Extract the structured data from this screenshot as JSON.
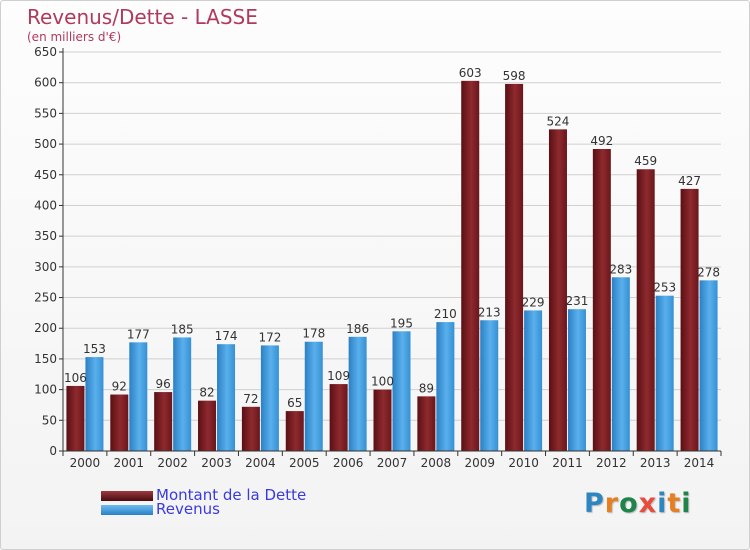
{
  "title": "Revenus/Dette - LASSE",
  "subtitle": "(en milliers d'€)",
  "legend": [
    "Montant de la Dette",
    "Revenus"
  ],
  "logo": {
    "letters": [
      "P",
      "r",
      "o",
      "x",
      "i",
      "t",
      "i"
    ],
    "colors": [
      "#2e86c1",
      "#e67e22",
      "#1e8449",
      "#e74c3c",
      "#2e86c1",
      "#e67e22",
      "#1e8449"
    ]
  },
  "colors": {
    "dette": "#7a1e22",
    "revenus": "#3a97d8",
    "axis": "#333333",
    "grid": "#d0d0d0"
  },
  "chart_data": {
    "type": "bar",
    "categories": [
      "2000",
      "2001",
      "2002",
      "2003",
      "2004",
      "2005",
      "2006",
      "2007",
      "2008",
      "2009",
      "2010",
      "2011",
      "2012",
      "2013",
      "2014"
    ],
    "series": [
      {
        "name": "Montant de la Dette",
        "values": [
          106,
          92,
          96,
          82,
          72,
          65,
          109,
          100,
          89,
          603,
          598,
          524,
          492,
          459,
          427
        ]
      },
      {
        "name": "Revenus",
        "values": [
          153,
          177,
          185,
          174,
          172,
          178,
          186,
          195,
          210,
          213,
          229,
          231,
          283,
          253,
          278
        ]
      }
    ],
    "ylim": [
      0,
      650
    ],
    "yticks": [
      0,
      50,
      100,
      150,
      200,
      250,
      300,
      350,
      400,
      450,
      500,
      550,
      600,
      650
    ],
    "grid": true,
    "legend_position": "bottom-left"
  }
}
